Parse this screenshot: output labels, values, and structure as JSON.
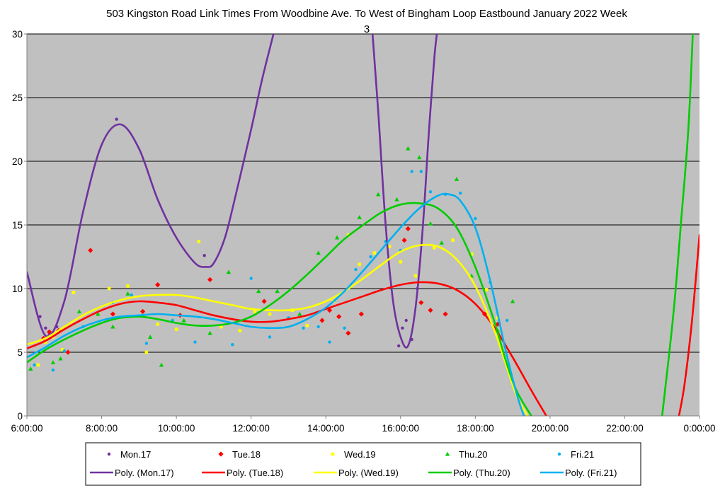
{
  "chart_data": {
    "type": "scatter",
    "title_line1": "503 Kingston Road Link Times From Woodbine Ave. To West of Bingham Loop Eastbound January 2022  Week",
    "title_line2": "3",
    "xlabel": "",
    "ylabel": "",
    "xlim": [
      6,
      24
    ],
    "ylim": [
      0,
      30
    ],
    "x_ticks": [
      {
        "value": 6,
        "label": "6:00:00"
      },
      {
        "value": 8,
        "label": "8:00:00"
      },
      {
        "value": 10,
        "label": "10:00:00"
      },
      {
        "value": 12,
        "label": "12:00:00"
      },
      {
        "value": 14,
        "label": "14:00:00"
      },
      {
        "value": 16,
        "label": "16:00:00"
      },
      {
        "value": 18,
        "label": "18:00:00"
      },
      {
        "value": 20,
        "label": "20:00:00"
      },
      {
        "value": 22,
        "label": "22:00:00"
      },
      {
        "value": 24,
        "label": "0:00:00"
      }
    ],
    "y_ticks": [
      0,
      5,
      10,
      15,
      20,
      25,
      30
    ],
    "grid": "horizontal",
    "plot_background": "#c0c0c0",
    "legend_position": "bottom",
    "series": [
      {
        "name": "Mon.17",
        "marker": "circle",
        "color": "#7030a0",
        "x": [
          6.35,
          6.5,
          6.6,
          6.8,
          8.4,
          10.75,
          15.95,
          16.05,
          16.15,
          16.3,
          16.45
        ],
        "y": [
          7.8,
          6.9,
          6.4,
          7.0,
          23.3,
          12.6,
          5.5,
          6.9,
          7.5,
          6.0,
          10.0
        ],
        "trend": {
          "name": "Poly. (Mon.17)",
          "x": [
            6.0,
            6.5,
            7.0,
            7.5,
            8.0,
            8.5,
            9.0,
            9.5,
            10.0,
            10.5,
            10.8,
            11.0,
            11.3,
            11.6,
            12.0,
            12.3,
            12.6,
            15.25,
            15.4,
            15.6,
            15.8,
            16.0,
            16.2,
            16.4,
            16.6,
            16.75,
            16.9,
            16.97
          ],
          "y": [
            11.3,
            6.3,
            9.0,
            16.0,
            21.3,
            22.9,
            21.0,
            17.0,
            14.0,
            12.0,
            11.7,
            12.0,
            14.0,
            17.5,
            22.5,
            26.5,
            30.0,
            30.0,
            24.0,
            15.0,
            9.0,
            6.2,
            5.5,
            8.5,
            15.0,
            22.0,
            28.0,
            30.0
          ]
        }
      },
      {
        "name": "Tue.18",
        "marker": "diamond",
        "color": "#ff0000",
        "x": [
          6.45,
          6.6,
          6.85,
          7.1,
          7.7,
          8.3,
          9.1,
          9.5,
          10.1,
          10.9,
          12.35,
          13.9,
          14.1,
          14.35,
          14.6,
          14.95,
          16.1,
          16.2,
          16.55,
          16.8,
          17.2,
          18.25,
          18.6
        ],
        "y": [
          6.1,
          6.6,
          6.7,
          5.0,
          13.0,
          8.0,
          8.2,
          10.3,
          7.9,
          10.7,
          9.0,
          7.5,
          8.3,
          7.8,
          6.5,
          8.0,
          13.8,
          14.7,
          8.9,
          8.3,
          8.0,
          8.0,
          7.2
        ],
        "trend": {
          "name": "Poly. (Tue.18)",
          "x": [
            6.0,
            6.5,
            7.0,
            7.5,
            8.0,
            8.5,
            9.0,
            9.5,
            10.0,
            10.5,
            11.0,
            11.5,
            12.0,
            12.5,
            13.0,
            13.5,
            14.0,
            14.5,
            15.0,
            15.5,
            16.0,
            16.5,
            17.0,
            17.5,
            18.0,
            18.5,
            19.0,
            19.5,
            19.9,
            23.45,
            23.6,
            23.8,
            24.0
          ],
          "y": [
            5.3,
            5.9,
            6.8,
            7.6,
            8.3,
            8.8,
            9.0,
            8.9,
            8.7,
            8.3,
            7.9,
            7.6,
            7.4,
            7.4,
            7.6,
            7.9,
            8.4,
            8.9,
            9.4,
            9.9,
            10.3,
            10.5,
            10.4,
            9.9,
            8.8,
            7.0,
            4.6,
            2.0,
            0.0,
            0.0,
            2.5,
            7.5,
            14.2
          ]
        }
      },
      {
        "name": "Wed.19",
        "marker": "square",
        "color": "#ffff00",
        "x": [
          6.3,
          6.5,
          6.7,
          6.95,
          7.25,
          8.2,
          8.7,
          9.2,
          9.5,
          10.0,
          10.6,
          11.2,
          11.7,
          12.1,
          12.5,
          13.1,
          13.5,
          14.2,
          14.6,
          14.9,
          15.3,
          15.7,
          16.0,
          16.4,
          16.9,
          17.4,
          17.9,
          18.3,
          18.6
        ],
        "y": [
          4.0,
          5.8,
          6.2,
          5.2,
          9.7,
          10.0,
          10.2,
          5.0,
          7.2,
          6.8,
          13.7,
          7.0,
          6.7,
          8.2,
          8.0,
          8.3,
          7.1,
          9.0,
          14.2,
          11.9,
          12.8,
          13.3,
          12.1,
          11.0,
          13.2,
          13.8,
          12.7,
          9.9,
          7.7
        ],
        "trend": {
          "name": "Poly. (Wed.19)",
          "x": [
            6.0,
            6.5,
            7.0,
            7.5,
            8.0,
            8.5,
            9.0,
            9.5,
            10.0,
            10.5,
            11.0,
            11.5,
            12.0,
            12.5,
            13.0,
            13.5,
            14.0,
            14.5,
            15.0,
            15.5,
            16.0,
            16.5,
            17.0,
            17.5,
            18.0,
            18.5,
            18.8,
            19.1,
            19.4
          ],
          "y": [
            5.6,
            6.1,
            7.0,
            7.9,
            8.6,
            9.1,
            9.4,
            9.5,
            9.5,
            9.3,
            9.0,
            8.7,
            8.4,
            8.3,
            8.3,
            8.5,
            9.0,
            9.8,
            10.8,
            11.9,
            12.9,
            13.4,
            13.3,
            12.3,
            10.2,
            6.8,
            4.2,
            1.6,
            0.0
          ]
        }
      },
      {
        "name": "Thu.20",
        "marker": "triangle",
        "color": "#00cc00",
        "x": [
          6.1,
          6.7,
          6.9,
          7.4,
          7.9,
          8.3,
          8.7,
          9.3,
          9.6,
          10.2,
          10.9,
          11.4,
          12.2,
          12.7,
          13.3,
          13.8,
          14.3,
          14.9,
          15.4,
          15.9,
          16.2,
          16.5,
          16.8,
          17.1,
          17.5,
          17.9,
          18.6,
          19.0
        ],
        "y": [
          3.7,
          4.2,
          4.5,
          8.2,
          8.0,
          7.0,
          9.6,
          6.2,
          4.0,
          7.5,
          6.5,
          11.3,
          9.8,
          9.8,
          8.0,
          12.8,
          14.0,
          15.6,
          17.4,
          17.0,
          21.0,
          20.3,
          15.1,
          13.6,
          18.6,
          11.0,
          6.7,
          9.0
        ],
        "trend": {
          "name": "Poly. (Thu.20)",
          "x": [
            6.0,
            6.5,
            7.0,
            7.5,
            8.0,
            8.5,
            9.0,
            9.5,
            10.0,
            10.5,
            11.0,
            11.5,
            12.0,
            12.5,
            13.0,
            13.5,
            14.0,
            14.5,
            15.0,
            15.5,
            16.0,
            16.5,
            17.0,
            17.5,
            18.0,
            18.5,
            18.8,
            19.1,
            19.5,
            23.0,
            23.3,
            23.5,
            23.7,
            23.82
          ],
          "y": [
            4.2,
            5.2,
            6.0,
            6.7,
            7.3,
            7.7,
            7.8,
            7.6,
            7.3,
            7.1,
            7.1,
            7.3,
            7.8,
            8.7,
            9.8,
            11.1,
            12.5,
            13.9,
            15.0,
            16.0,
            16.6,
            16.7,
            16.3,
            14.8,
            11.7,
            7.5,
            4.5,
            2.0,
            0.0,
            0.0,
            8.0,
            15.0,
            22.5,
            30.0
          ]
        }
      },
      {
        "name": "Fri.21",
        "marker": "circle",
        "color": "#00b0f0",
        "x": [
          6.2,
          6.7,
          7.0,
          7.5,
          8.3,
          8.8,
          9.2,
          9.9,
          10.5,
          11.5,
          12.0,
          12.5,
          13.0,
          13.4,
          13.8,
          14.1,
          14.5,
          14.8,
          15.2,
          15.6,
          16.0,
          16.3,
          16.55,
          16.8,
          17.2,
          17.6,
          18.0,
          18.4,
          18.85
        ],
        "y": [
          4.0,
          3.6,
          5.1,
          7.0,
          8.9,
          9.5,
          5.7,
          7.5,
          5.8,
          5.6,
          10.8,
          6.2,
          7.7,
          6.9,
          7.0,
          5.8,
          6.9,
          11.5,
          12.5,
          13.7,
          13.0,
          19.2,
          19.2,
          17.6,
          17.4,
          17.5,
          15.5,
          10.5,
          7.5
        ],
        "trend": {
          "name": "Poly. (Fri.21)",
          "x": [
            6.0,
            6.5,
            7.0,
            7.5,
            8.0,
            8.5,
            9.0,
            9.5,
            10.0,
            10.5,
            11.0,
            11.5,
            12.0,
            12.5,
            13.0,
            13.5,
            14.0,
            14.5,
            15.0,
            15.5,
            16.0,
            16.5,
            17.0,
            17.3,
            17.6,
            18.0,
            18.4,
            18.8,
            19.1,
            19.3
          ],
          "y": [
            4.6,
            5.4,
            6.3,
            7.0,
            7.5,
            7.8,
            7.9,
            8.0,
            7.9,
            7.8,
            7.6,
            7.3,
            7.0,
            6.9,
            7.0,
            7.6,
            8.5,
            9.8,
            11.4,
            13.1,
            14.8,
            16.3,
            17.3,
            17.4,
            16.9,
            14.8,
            10.6,
            5.3,
            1.8,
            0.0
          ]
        }
      }
    ]
  }
}
